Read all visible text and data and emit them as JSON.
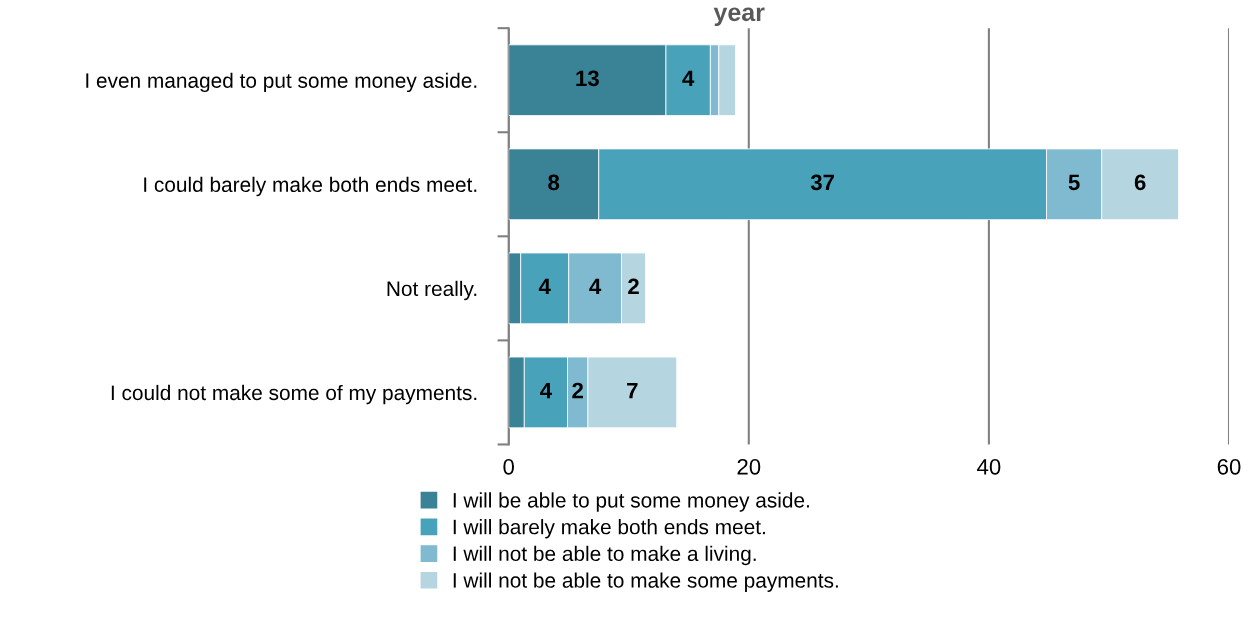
{
  "chart_data": {
    "type": "bar",
    "orientation": "horizontal",
    "stacked": true,
    "title": "year",
    "categories": [
      "I even managed to put some money aside.",
      "I could barely make both ends meet.",
      "Not really.",
      "I could not make some of my payments."
    ],
    "series": [
      {
        "name": "I will be able to put some money aside.",
        "color": "#3a8296",
        "values": [
          13.1,
          7.5,
          1.0,
          1.3
        ],
        "value_labels": [
          "13",
          "8",
          null,
          null
        ]
      },
      {
        "name": "I will barely make both ends meet.",
        "color": "#48a2ba",
        "values": [
          3.7,
          37.3,
          4.0,
          3.6
        ],
        "value_labels": [
          "4",
          "37",
          "4",
          "4"
        ]
      },
      {
        "name": "I will not be able to make a living.",
        "color": "#7fbad0",
        "values": [
          0.7,
          4.6,
          4.4,
          1.7
        ],
        "value_labels": [
          null,
          "5",
          "4",
          "2"
        ]
      },
      {
        "name": "I will not be able to make some payments.",
        "color": "#b5d5e0",
        "values": [
          1.4,
          6.4,
          2.0,
          7.4
        ],
        "value_labels": [
          null,
          "6",
          "2",
          "7"
        ]
      }
    ],
    "xlim": [
      0,
      60
    ],
    "xticks": [
      0,
      20,
      40,
      60
    ],
    "grid": "x",
    "legend": "bottom"
  }
}
